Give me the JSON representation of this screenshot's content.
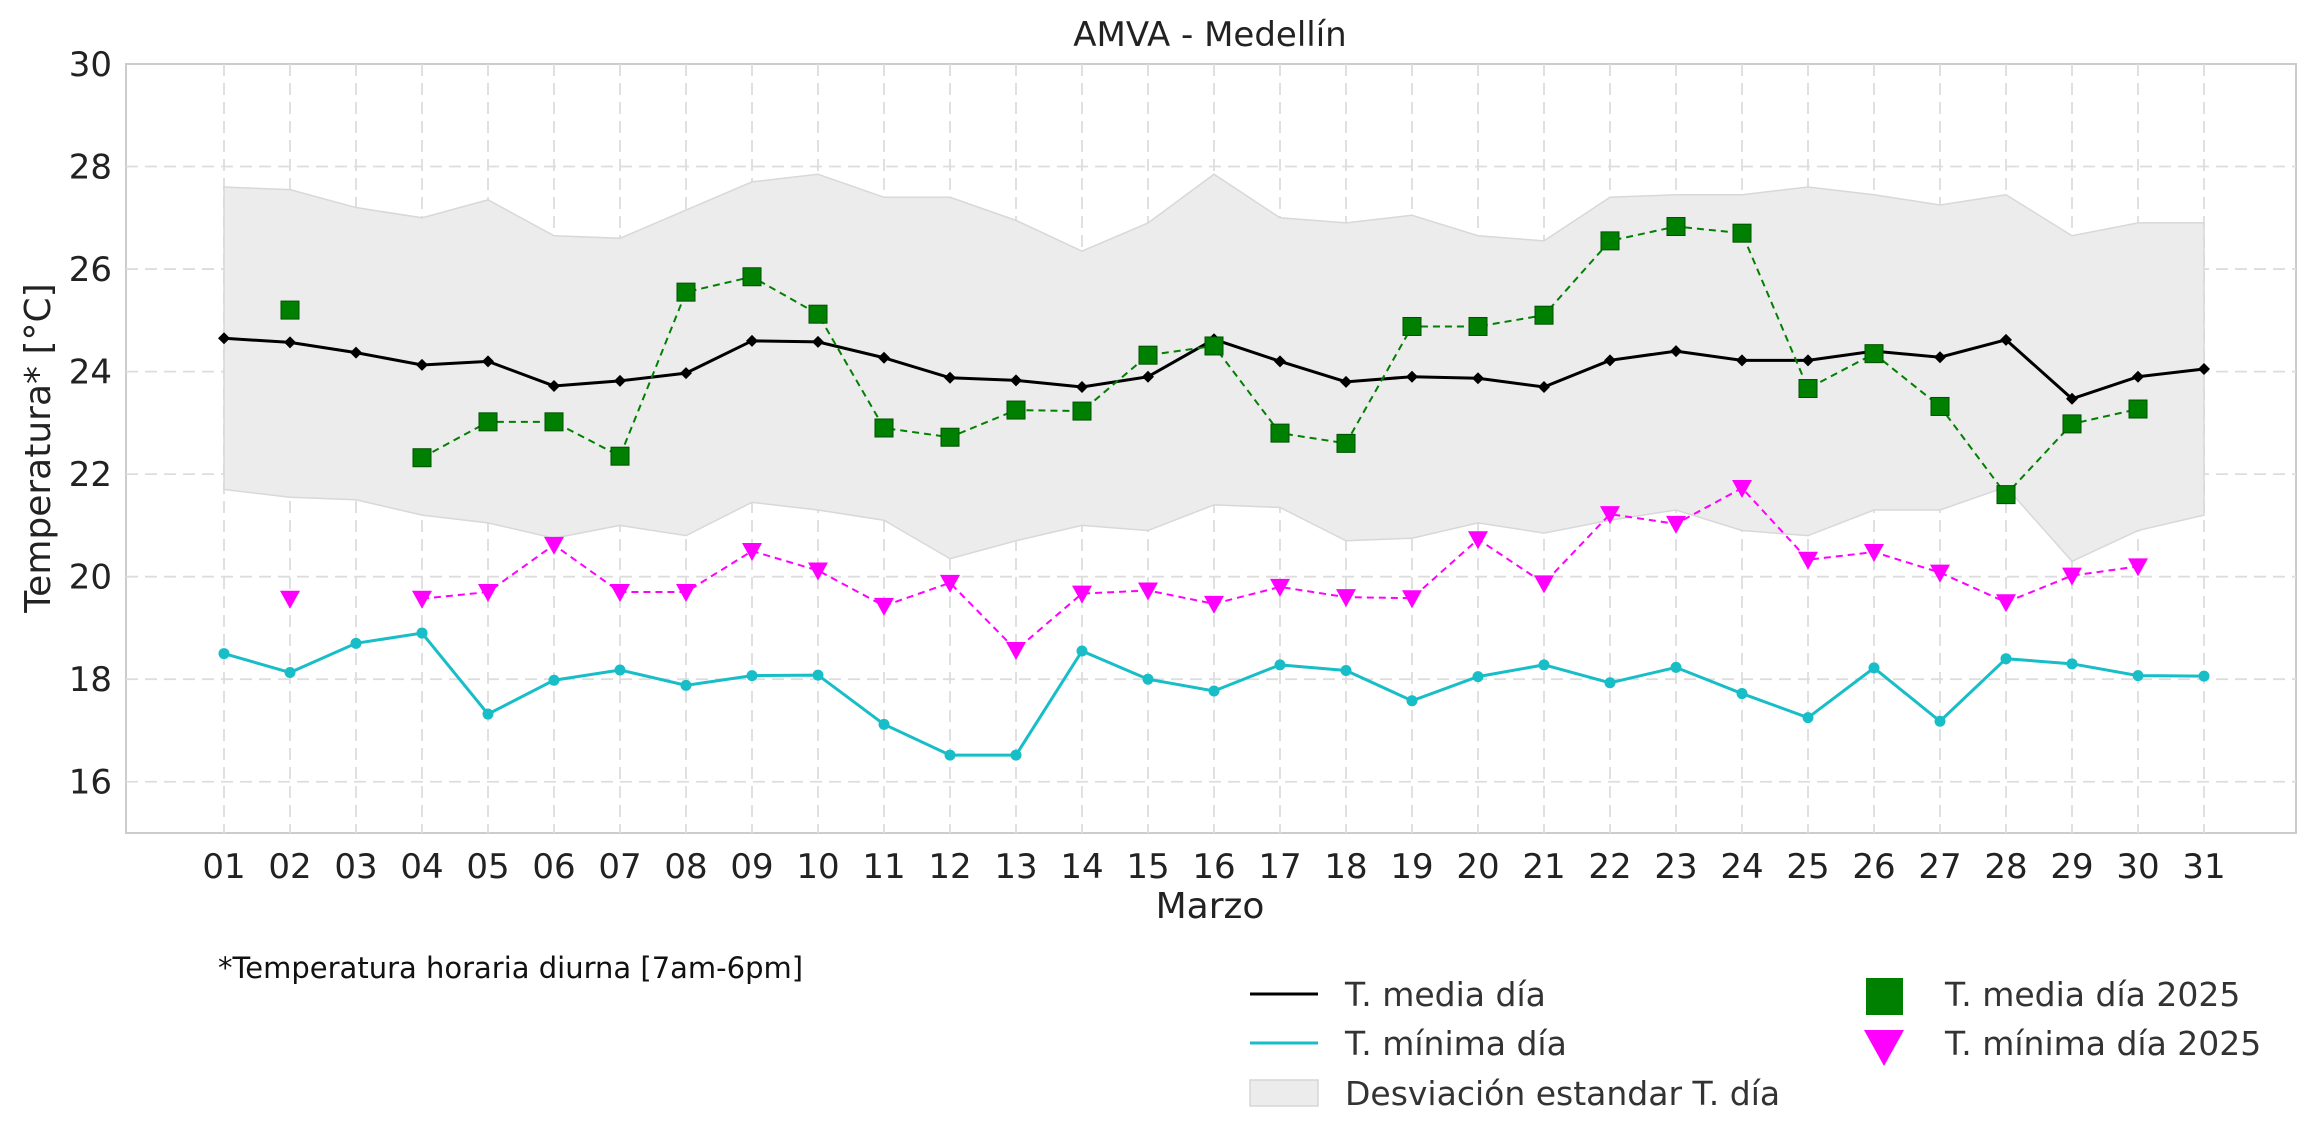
{
  "chart_data": {
    "type": "line",
    "title": "AMVA - Medellín",
    "xlabel": "Marzo",
    "ylabel": "Temperatura* [°C]",
    "note": "*Temperatura horaria diurna [7am-6pm]",
    "ylim": [
      15,
      30
    ],
    "yticks": [
      16,
      18,
      20,
      22,
      24,
      26,
      28,
      30
    ],
    "grid": true,
    "legend_position": "bottom-right",
    "categories": [
      "01",
      "02",
      "03",
      "04",
      "05",
      "06",
      "07",
      "08",
      "09",
      "10",
      "11",
      "12",
      "13",
      "14",
      "15",
      "16",
      "17",
      "18",
      "19",
      "20",
      "21",
      "22",
      "23",
      "24",
      "25",
      "26",
      "27",
      "28",
      "29",
      "30",
      "31"
    ],
    "band": {
      "name": "Desviación estandar T. día",
      "color": "#ececec",
      "upper": [
        27.6,
        27.55,
        27.2,
        27.0,
        27.35,
        26.65,
        26.6,
        27.15,
        27.7,
        27.85,
        27.4,
        27.4,
        26.95,
        26.35,
        26.9,
        27.85,
        27.0,
        26.9,
        27.05,
        26.65,
        26.55,
        27.4,
        27.45,
        27.45,
        27.6,
        27.45,
        27.25,
        27.45,
        26.65,
        26.9,
        26.9
      ],
      "lower": [
        21.7,
        21.55,
        21.5,
        21.2,
        21.05,
        20.75,
        21.0,
        20.8,
        21.45,
        21.3,
        21.1,
        20.35,
        20.7,
        21.0,
        20.9,
        21.4,
        21.35,
        20.7,
        20.75,
        21.05,
        20.85,
        21.1,
        21.3,
        20.9,
        20.8,
        21.3,
        21.3,
        21.75,
        20.3,
        20.9,
        21.2
      ]
    },
    "series": [
      {
        "name": "T. media día",
        "color": "#000000",
        "line": "solid",
        "marker": "diamond",
        "values": [
          24.65,
          24.57,
          24.37,
          24.13,
          24.2,
          23.72,
          23.82,
          23.97,
          24.6,
          24.58,
          24.27,
          23.88,
          23.83,
          23.7,
          23.9,
          24.63,
          24.2,
          23.8,
          23.9,
          23.87,
          23.7,
          24.22,
          24.4,
          24.22,
          24.22,
          24.4,
          24.28,
          24.62,
          23.47,
          23.9,
          24.05
        ]
      },
      {
        "name": "T. mínima día",
        "color": "#17bdc7",
        "line": "solid",
        "marker": "circle",
        "values": [
          18.5,
          18.13,
          18.7,
          18.9,
          17.32,
          17.98,
          18.18,
          17.88,
          18.07,
          18.08,
          17.12,
          16.52,
          16.52,
          18.55,
          18.0,
          17.77,
          18.28,
          18.17,
          17.58,
          18.05,
          18.28,
          17.93,
          18.23,
          17.72,
          17.25,
          18.22,
          17.18,
          18.4,
          18.3,
          18.07,
          18.06
        ]
      },
      {
        "name": "T. media día 2025",
        "color": "#008000",
        "line": "dashed",
        "marker": "square",
        "values": [
          null,
          25.2,
          null,
          22.32,
          23.02,
          23.02,
          22.35,
          25.55,
          25.85,
          25.12,
          22.9,
          22.72,
          23.25,
          23.23,
          24.32,
          24.5,
          22.8,
          22.6,
          24.88,
          24.88,
          25.1,
          26.55,
          26.83,
          26.7,
          23.67,
          24.35,
          23.32,
          21.6,
          22.98,
          23.27,
          null
        ]
      },
      {
        "name": "T. mínima día 2025",
        "color": "#ff00ff",
        "line": "dashed",
        "marker": "triangle-down",
        "values": [
          null,
          19.57,
          null,
          19.57,
          19.7,
          20.62,
          19.7,
          19.7,
          20.5,
          20.12,
          19.43,
          19.88,
          18.57,
          19.67,
          19.73,
          19.47,
          19.8,
          19.6,
          19.58,
          20.73,
          19.87,
          21.22,
          21.03,
          21.73,
          20.33,
          20.48,
          20.08,
          19.5,
          20.02,
          20.2,
          null
        ]
      }
    ]
  }
}
